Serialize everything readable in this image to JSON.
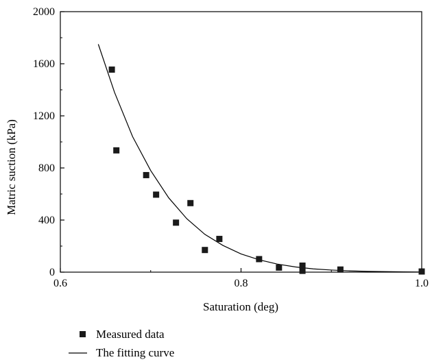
{
  "chart_data": {
    "type": "scatter",
    "title": "",
    "xlabel": "Saturation (deg)",
    "ylabel": "Matric suction (kPa)",
    "xlim": [
      0.6,
      1.0
    ],
    "ylim": [
      0,
      2000
    ],
    "x_ticks": [
      0.6,
      0.8,
      1.0
    ],
    "x_tick_labels": [
      "0.6",
      "0.8",
      "1.0"
    ],
    "y_ticks": [
      0,
      400,
      800,
      1200,
      1600,
      2000
    ],
    "y_tick_labels": [
      "0",
      "400",
      "800",
      "1200",
      "1600",
      "2000"
    ],
    "grid": false,
    "legend_position": "bottom-left, below plot",
    "series": [
      {
        "name": "Measured data",
        "type": "scatter",
        "marker": "square",
        "color": "#1a1a1a",
        "x": [
          0.657,
          0.662,
          0.695,
          0.706,
          0.728,
          0.744,
          0.76,
          0.776,
          0.82,
          0.842,
          0.868,
          0.868,
          0.91,
          1.0
        ],
        "y": [
          1555,
          935,
          745,
          595,
          380,
          530,
          170,
          255,
          100,
          35,
          50,
          10,
          20,
          5
        ]
      },
      {
        "name": "The fitting curve",
        "type": "line",
        "color": "#000000",
        "x": [
          0.642,
          0.66,
          0.68,
          0.7,
          0.72,
          0.74,
          0.76,
          0.78,
          0.8,
          0.82,
          0.84,
          0.86,
          0.88,
          0.9,
          0.92,
          0.94,
          0.96,
          0.98,
          1.0
        ],
        "y": [
          1750,
          1380,
          1040,
          780,
          570,
          410,
          290,
          205,
          140,
          95,
          62,
          40,
          25,
          16,
          10,
          6,
          4,
          2,
          1
        ]
      }
    ]
  }
}
